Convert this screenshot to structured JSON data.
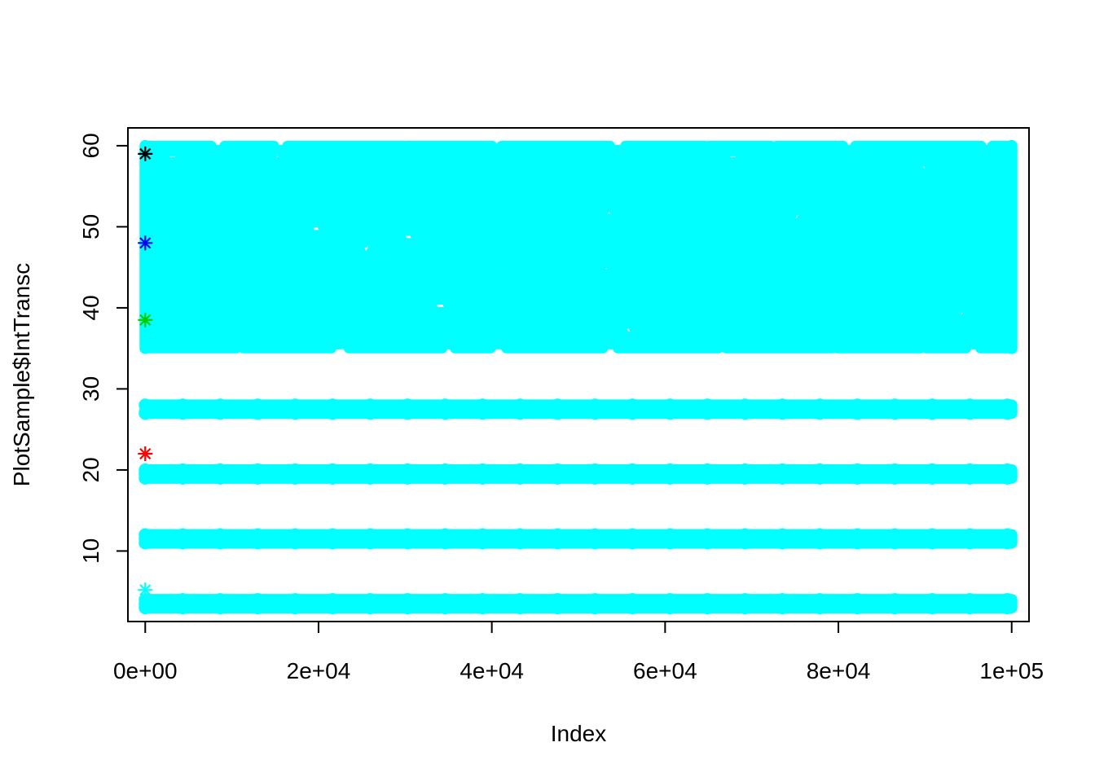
{
  "chart_data": {
    "type": "scatter",
    "title": "",
    "xlabel": "Index",
    "ylabel": "PlotSample$IntTransc",
    "xlim": [
      -2000,
      102000
    ],
    "ylim": [
      1.3,
      62.2
    ],
    "x_ticks": [
      0,
      20000,
      40000,
      60000,
      80000,
      100000
    ],
    "x_tick_labels": [
      "0e+00",
      "2e+04",
      "4e+04",
      "6e+04",
      "8e+04",
      "1e+05"
    ],
    "y_ticks": [
      10,
      20,
      30,
      40,
      50,
      60
    ],
    "y_tick_labels": [
      "10",
      "20",
      "30",
      "40",
      "50",
      "60"
    ],
    "grid": false,
    "legend": "none",
    "point_color": "#00FFFF",
    "bands": [
      {
        "name": "",
        "x_range": [
          0,
          100000
        ],
        "y_values": [
          3,
          3.5,
          4
        ],
        "density": "dense"
      },
      {
        "name": "",
        "x_range": [
          0,
          100000
        ],
        "y_values": [
          11,
          11.5,
          12
        ],
        "density": "dense"
      },
      {
        "name": "",
        "x_range": [
          0,
          100000
        ],
        "y_values": [
          19,
          19.5,
          20
        ],
        "density": "dense"
      },
      {
        "name": "",
        "x_range": [
          0,
          100000
        ],
        "y_values": [
          27,
          28
        ],
        "density": "dense"
      },
      {
        "name": "",
        "x_range": [
          0,
          100000
        ],
        "y_range": [
          35,
          60
        ],
        "density": "scattered"
      }
    ],
    "highlight_points": [
      {
        "x": 0,
        "y": 59,
        "color": "#000000",
        "marker": "asterisk"
      },
      {
        "x": 0,
        "y": 48,
        "color": "#0000FF",
        "marker": "asterisk"
      },
      {
        "x": 0,
        "y": 38.5,
        "color": "#00CD00",
        "marker": "asterisk"
      },
      {
        "x": 0,
        "y": 22,
        "color": "#FF0000",
        "marker": "asterisk"
      },
      {
        "x": 0,
        "y": 5.2,
        "color": "#00FFFF",
        "marker": "asterisk"
      }
    ]
  }
}
